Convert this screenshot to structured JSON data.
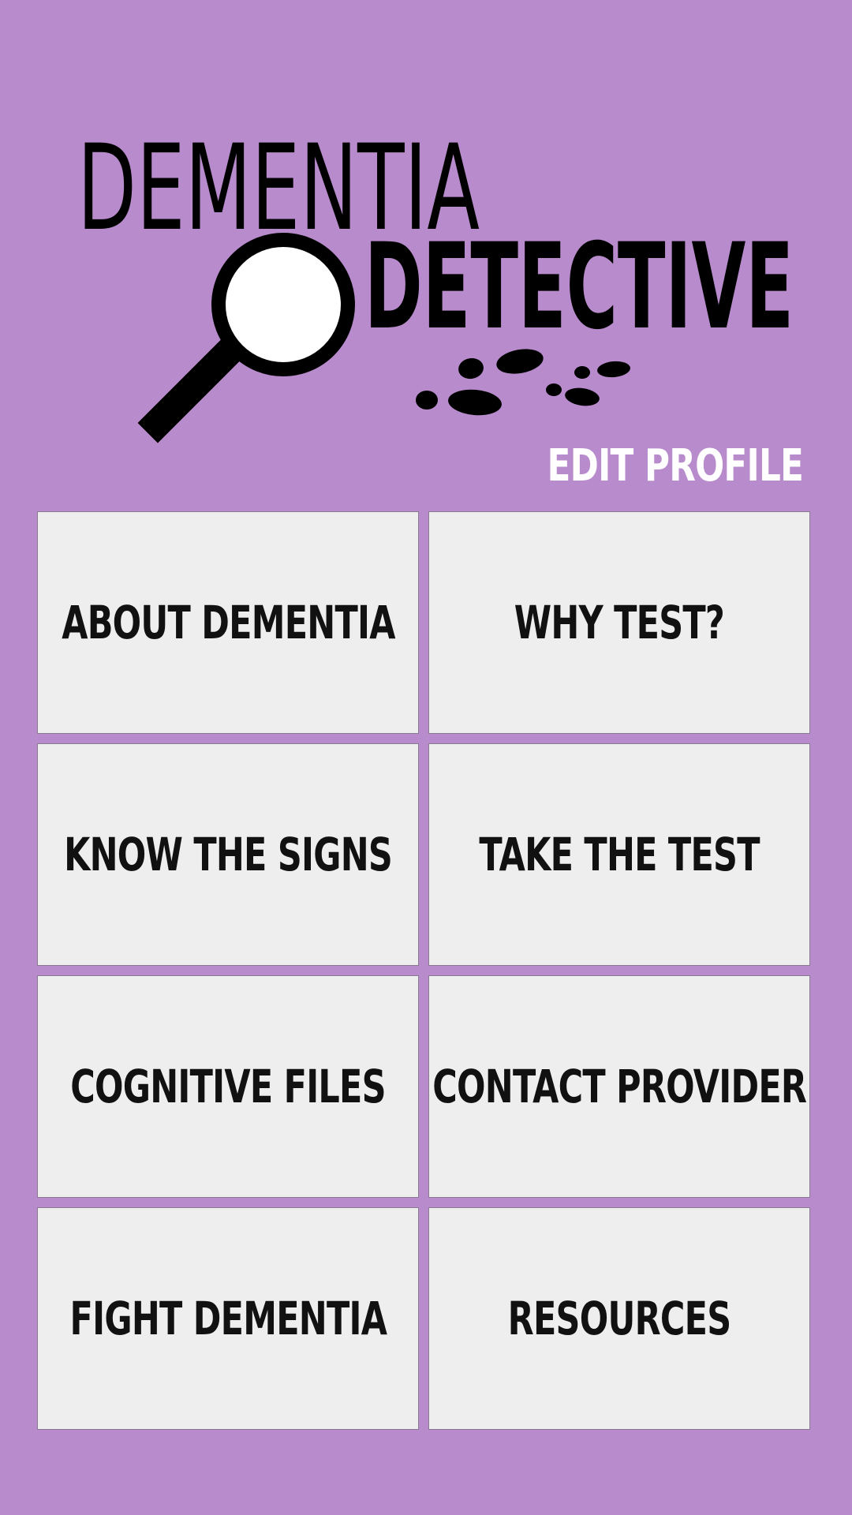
{
  "logo": {
    "line1": "DEMENTIA",
    "line2": "DETECTIVE"
  },
  "edit_profile_label": "EDIT PROFILE",
  "menu": {
    "items": [
      {
        "label": "ABOUT DEMENTIA"
      },
      {
        "label": "WHY TEST?"
      },
      {
        "label": "KNOW THE SIGNS"
      },
      {
        "label": "TAKE THE TEST"
      },
      {
        "label": "COGNITIVE FILES"
      },
      {
        "label": "CONTACT PROVIDER"
      },
      {
        "label": "FIGHT DEMENTIA"
      },
      {
        "label": "RESOURCES"
      }
    ]
  },
  "colors": {
    "background": "#b88bcc",
    "tile": "#eeeeee",
    "text": "#111111",
    "accent_text": "#ffffff"
  }
}
